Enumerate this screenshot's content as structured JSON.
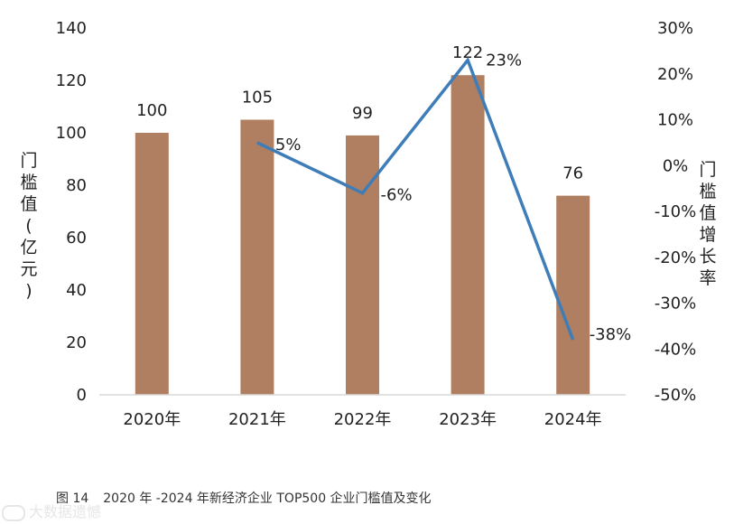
{
  "chart_data": {
    "type": "bar+line",
    "categories": [
      "2020年",
      "2021年",
      "2022年",
      "2023年",
      "2024年"
    ],
    "bar_series": {
      "name": "门槛值（亿元）",
      "values": [
        100,
        105,
        99,
        122,
        76
      ],
      "labels": [
        "100",
        "105",
        "99",
        "122",
        "76"
      ],
      "color": "#B07F61"
    },
    "line_series": {
      "name": "门槛值增长率",
      "values": [
        null,
        5,
        -6,
        23,
        -38
      ],
      "labels": [
        "",
        "5%",
        "-6%",
        "23%",
        "-38%"
      ],
      "color": "#3E7DB8"
    },
    "left_axis": {
      "label": "门槛值（亿元）",
      "min": 0,
      "max": 140,
      "step": 20,
      "ticks": [
        "0",
        "20",
        "40",
        "60",
        "80",
        "100",
        "120",
        "140"
      ]
    },
    "right_axis": {
      "label": "门槛值增长率",
      "min": -50,
      "max": 30,
      "step": 10,
      "ticks": [
        "-50%",
        "-40%",
        "-30%",
        "-20%",
        "-10%",
        "0%",
        "10%",
        "20%",
        "30%"
      ]
    },
    "grid": false,
    "legend": "none"
  },
  "caption": {
    "number": "图 14",
    "text": "2020 年 -2024 年新经济企业 TOP500 企业门槛值及变化"
  },
  "watermark": "大数据遗憾"
}
